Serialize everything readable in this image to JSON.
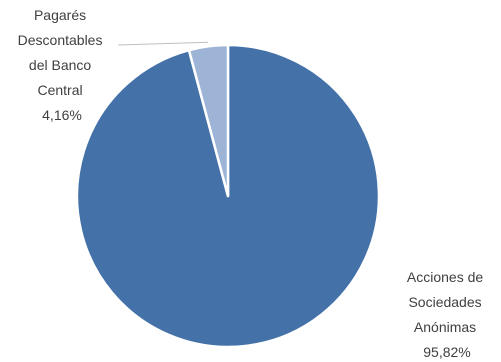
{
  "chart_data": {
    "type": "pie",
    "title": "",
    "slices": [
      {
        "label_lines": [
          "Acciones de",
          "Sociedades",
          "Anónimas"
        ],
        "value_text": "95,82%",
        "value": 95.82,
        "color": "#4472A8"
      },
      {
        "label_lines": [
          "Pagarés",
          "Descontables",
          "del Banco",
          "Central"
        ],
        "value_text": "4,16%",
        "value": 4.16,
        "color": "#9DB4D6"
      }
    ],
    "start_angle_deg": 0,
    "direction": "clockwise",
    "legend": "none",
    "label_line_color": "#bfbfbf"
  }
}
